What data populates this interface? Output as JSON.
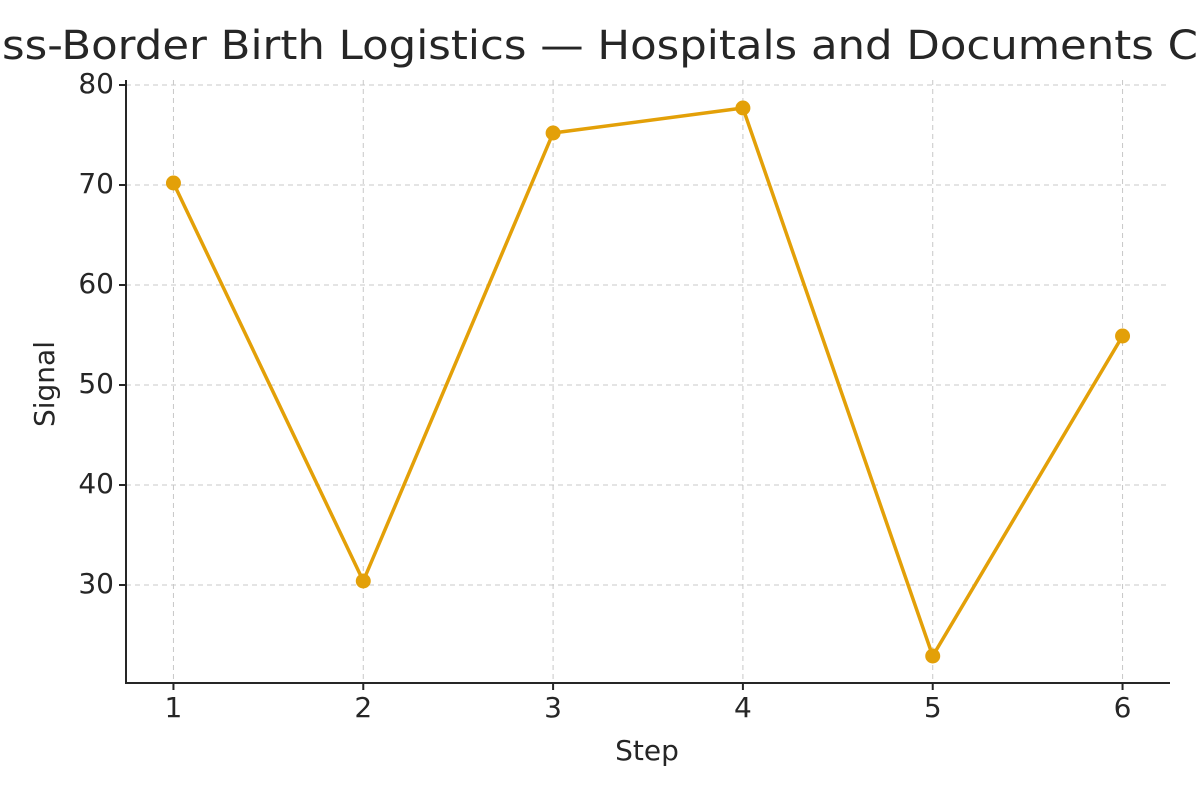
{
  "chart_data": {
    "type": "line",
    "title": "ss-Border Birth Logistics — Hospitals and Documents C",
    "x_label": "Step",
    "y_label": "Signal",
    "x": [
      1,
      2,
      3,
      4,
      5,
      6
    ],
    "series": [
      {
        "name": "Signal",
        "color": "#e3a008",
        "values": [
          70.2,
          30.4,
          75.2,
          77.7,
          22.9,
          54.9
        ]
      }
    ],
    "xlim": [
      0.75,
      6.25
    ],
    "xticks": [
      1,
      2,
      3,
      4,
      5,
      6
    ],
    "ylim": [
      20.2,
      80.5
    ],
    "yticks": [
      30,
      40,
      50,
      60,
      70,
      80
    ],
    "grid": true
  }
}
